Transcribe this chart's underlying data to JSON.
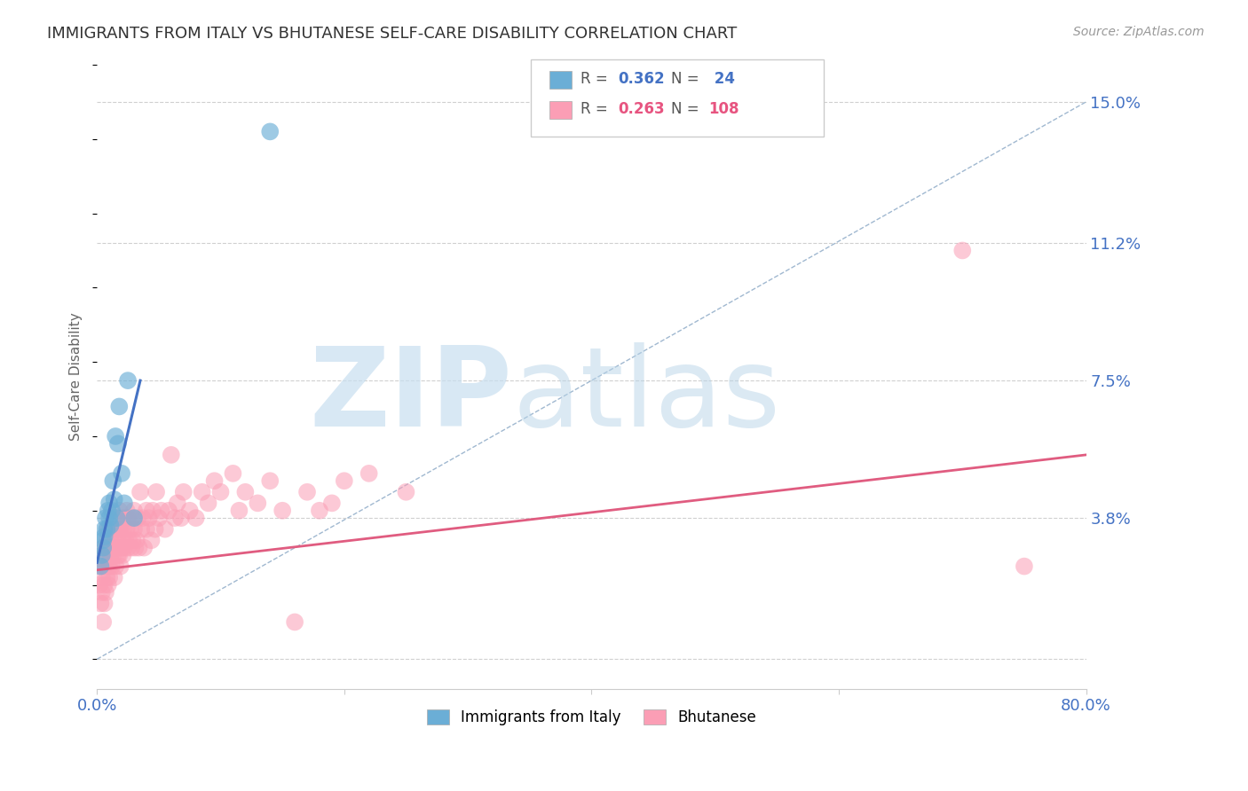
{
  "title": "IMMIGRANTS FROM ITALY VS BHUTANESE SELF-CARE DISABILITY CORRELATION CHART",
  "source": "Source: ZipAtlas.com",
  "ylabel": "Self-Care Disability",
  "legend_label_1": "Immigrants from Italy",
  "legend_label_2": "Bhutanese",
  "r1": 0.362,
  "n1": 24,
  "r2": 0.263,
  "n2": 108,
  "color1": "#6baed6",
  "color2": "#fb9eb5",
  "color1_trend": "#4472c4",
  "color2_trend": "#e05c80",
  "xlim": [
    0.0,
    0.8
  ],
  "ylim": [
    -0.008,
    0.16
  ],
  "yticks": [
    0.0,
    0.038,
    0.075,
    0.112,
    0.15
  ],
  "ytick_labels": [
    "",
    "3.8%",
    "7.5%",
    "11.2%",
    "15.0%"
  ],
  "xticks": [
    0.0,
    0.2,
    0.4,
    0.6,
    0.8
  ],
  "xtick_labels": [
    "0.0%",
    "",
    "",
    "",
    "80.0%"
  ],
  "background": "#ffffff",
  "grid_color": "#d0d0d0",
  "italy_x": [
    0.003,
    0.004,
    0.005,
    0.005,
    0.006,
    0.006,
    0.007,
    0.008,
    0.009,
    0.01,
    0.01,
    0.011,
    0.012,
    0.013,
    0.014,
    0.015,
    0.016,
    0.017,
    0.018,
    0.02,
    0.022,
    0.025,
    0.03,
    0.14
  ],
  "italy_y": [
    0.025,
    0.028,
    0.03,
    0.032,
    0.033,
    0.035,
    0.038,
    0.035,
    0.04,
    0.042,
    0.038,
    0.036,
    0.04,
    0.048,
    0.043,
    0.06,
    0.038,
    0.058,
    0.068,
    0.05,
    0.042,
    0.075,
    0.038,
    0.142
  ],
  "bhutanese_x": [
    0.002,
    0.003,
    0.003,
    0.004,
    0.004,
    0.005,
    0.005,
    0.005,
    0.006,
    0.006,
    0.006,
    0.007,
    0.007,
    0.007,
    0.008,
    0.008,
    0.008,
    0.009,
    0.009,
    0.009,
    0.01,
    0.01,
    0.01,
    0.01,
    0.011,
    0.011,
    0.012,
    0.012,
    0.013,
    0.013,
    0.014,
    0.014,
    0.015,
    0.015,
    0.015,
    0.016,
    0.016,
    0.017,
    0.017,
    0.018,
    0.018,
    0.018,
    0.019,
    0.019,
    0.02,
    0.02,
    0.021,
    0.021,
    0.022,
    0.022,
    0.023,
    0.023,
    0.024,
    0.024,
    0.025,
    0.025,
    0.026,
    0.027,
    0.028,
    0.028,
    0.029,
    0.03,
    0.03,
    0.031,
    0.032,
    0.033,
    0.034,
    0.035,
    0.036,
    0.037,
    0.038,
    0.04,
    0.04,
    0.042,
    0.044,
    0.045,
    0.047,
    0.048,
    0.05,
    0.052,
    0.055,
    0.058,
    0.06,
    0.063,
    0.065,
    0.068,
    0.07,
    0.075,
    0.08,
    0.085,
    0.09,
    0.095,
    0.1,
    0.11,
    0.115,
    0.12,
    0.13,
    0.14,
    0.15,
    0.16,
    0.17,
    0.18,
    0.19,
    0.2,
    0.22,
    0.25,
    0.7,
    0.75
  ],
  "bhutanese_y": [
    0.02,
    0.015,
    0.025,
    0.018,
    0.022,
    0.01,
    0.025,
    0.03,
    0.015,
    0.02,
    0.028,
    0.018,
    0.025,
    0.03,
    0.022,
    0.028,
    0.032,
    0.02,
    0.025,
    0.035,
    0.025,
    0.03,
    0.022,
    0.035,
    0.028,
    0.032,
    0.025,
    0.03,
    0.028,
    0.035,
    0.022,
    0.03,
    0.032,
    0.038,
    0.025,
    0.03,
    0.035,
    0.028,
    0.032,
    0.035,
    0.028,
    0.04,
    0.025,
    0.035,
    0.03,
    0.038,
    0.032,
    0.028,
    0.035,
    0.03,
    0.038,
    0.032,
    0.035,
    0.04,
    0.03,
    0.038,
    0.032,
    0.035,
    0.03,
    0.038,
    0.032,
    0.035,
    0.04,
    0.03,
    0.032,
    0.038,
    0.03,
    0.045,
    0.035,
    0.038,
    0.03,
    0.035,
    0.04,
    0.038,
    0.032,
    0.04,
    0.035,
    0.045,
    0.038,
    0.04,
    0.035,
    0.04,
    0.055,
    0.038,
    0.042,
    0.038,
    0.045,
    0.04,
    0.038,
    0.045,
    0.042,
    0.048,
    0.045,
    0.05,
    0.04,
    0.045,
    0.042,
    0.048,
    0.04,
    0.01,
    0.045,
    0.04,
    0.042,
    0.048,
    0.05,
    0.045,
    0.11,
    0.025
  ],
  "italy_trend_x": [
    0.0,
    0.035
  ],
  "italy_trend_y": [
    0.026,
    0.075
  ],
  "bhu_trend_x": [
    0.0,
    0.8
  ],
  "bhu_trend_y": [
    0.024,
    0.055
  ],
  "ref_line_x": [
    0.0,
    0.8
  ],
  "ref_line_y": [
    0.0,
    0.15
  ]
}
